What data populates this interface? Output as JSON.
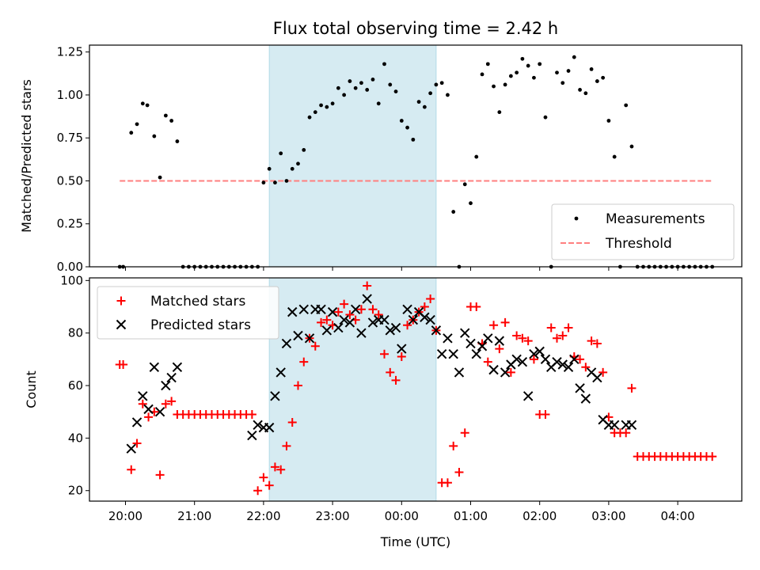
{
  "chart_data": [
    {
      "type": "scatter",
      "title": "Flux total observing time = 2.42 h",
      "xlabel": "",
      "ylabel": "Matched/Predicted stars",
      "ylim": [
        0,
        1.29
      ],
      "yticks": [
        "0.00",
        "0.25",
        "0.50",
        "0.75",
        "1.00",
        "1.25"
      ],
      "x_unit": "hours after 20:00 UTC",
      "shaded_interval": [
        "22:05",
        "00:30"
      ],
      "shade_color": "#add8e6",
      "legend": "lower right",
      "series": [
        {
          "name": "Measurements",
          "color": "#000000",
          "marker": "dot",
          "x": [
            "19:55",
            "19:58",
            "20:05",
            "20:10",
            "20:15",
            "20:19",
            "20:25",
            "20:30",
            "20:35",
            "20:40",
            "20:45",
            "20:50",
            "20:55",
            "21:00",
            "21:05",
            "21:10",
            "21:15",
            "21:20",
            "21:25",
            "21:30",
            "21:35",
            "21:40",
            "21:45",
            "21:50",
            "21:55",
            "22:00",
            "22:05",
            "22:10",
            "22:15",
            "22:20",
            "22:25",
            "22:30",
            "22:35",
            "22:40",
            "22:45",
            "22:50",
            "22:55",
            "23:00",
            "23:05",
            "23:10",
            "23:15",
            "23:20",
            "23:25",
            "23:30",
            "23:35",
            "23:40",
            "23:45",
            "23:50",
            "23:55",
            "00:00",
            "00:05",
            "00:10",
            "00:15",
            "00:20",
            "00:25",
            "00:30",
            "00:35",
            "00:40",
            "00:45",
            "00:50",
            "00:55",
            "01:00",
            "01:05",
            "01:10",
            "01:15",
            "01:20",
            "01:25",
            "01:30",
            "01:35",
            "01:40",
            "01:45",
            "01:50",
            "01:55",
            "02:00",
            "02:05",
            "02:10",
            "02:15",
            "02:20",
            "02:25",
            "02:30",
            "02:35",
            "02:40",
            "02:45",
            "02:50",
            "02:55",
            "03:00",
            "03:05",
            "03:10",
            "03:15",
            "03:20",
            "03:25",
            "03:30",
            "03:35",
            "03:40",
            "03:45",
            "03:50",
            "03:55",
            "04:00",
            "04:05",
            "04:10",
            "04:15",
            "04:20",
            "04:25",
            "04:30"
          ],
          "y": [
            0.0,
            0.0,
            0.78,
            0.83,
            0.95,
            0.94,
            0.76,
            0.52,
            0.88,
            0.85,
            0.73,
            0.0,
            0.0,
            0.0,
            0.0,
            0.0,
            0.0,
            0.0,
            0.0,
            0.0,
            0.0,
            0.0,
            0.0,
            0.0,
            0.0,
            0.49,
            0.57,
            0.49,
            0.66,
            0.5,
            0.57,
            0.6,
            0.68,
            0.87,
            0.9,
            0.94,
            0.93,
            0.95,
            1.04,
            1.0,
            1.08,
            1.04,
            1.07,
            1.03,
            1.09,
            0.95,
            1.18,
            1.06,
            1.02,
            0.85,
            0.81,
            0.74,
            0.96,
            0.93,
            1.01,
            1.06,
            1.07,
            1.0,
            0.32,
            0.0,
            0.48,
            0.37,
            0.64,
            1.12,
            1.18,
            1.05,
            0.9,
            1.06,
            1.11,
            1.13,
            1.21,
            1.17,
            1.1,
            1.18,
            0.87,
            0.0,
            1.13,
            1.07,
            1.14,
            1.22,
            1.03,
            1.01,
            1.15,
            1.08,
            1.1,
            0.85,
            0.64,
            0.0,
            0.94,
            0.7,
            0.0,
            0.0,
            0.0,
            0.0,
            0.0,
            0.0,
            0.0,
            0.0,
            0.0,
            0.0,
            0.0,
            0.0,
            0.0,
            0.0
          ]
        },
        {
          "name": "Threshold",
          "color": "#ff7f7f",
          "style": "dashed",
          "x": [
            "19:55",
            "04:30"
          ],
          "y": [
            0.5,
            0.5
          ]
        }
      ]
    },
    {
      "type": "scatter",
      "title": "",
      "xlabel": "Time (UTC)",
      "ylabel": "Count",
      "ylim": [
        16,
        101
      ],
      "yticks": [
        "20",
        "40",
        "60",
        "80",
        "100"
      ],
      "xticks": [
        "20:00",
        "21:00",
        "22:00",
        "23:00",
        "00:00",
        "01:00",
        "02:00",
        "03:00",
        "04:00"
      ],
      "x_unit": "hours after 20:00 UTC",
      "shaded_interval": [
        "22:05",
        "00:30"
      ],
      "shade_color": "#add8e6",
      "legend": "upper left",
      "series": [
        {
          "name": "Matched stars",
          "color": "#ff0000",
          "marker": "plus",
          "x": [
            "19:55",
            "19:58",
            "20:05",
            "20:10",
            "20:15",
            "20:20",
            "20:25",
            "20:30",
            "20:35",
            "20:40",
            "20:45",
            "20:50",
            "20:55",
            "21:00",
            "21:05",
            "21:10",
            "21:15",
            "21:20",
            "21:25",
            "21:30",
            "21:35",
            "21:40",
            "21:45",
            "21:50",
            "21:55",
            "22:00",
            "22:05",
            "22:10",
            "22:15",
            "22:20",
            "22:25",
            "22:30",
            "22:35",
            "22:40",
            "22:45",
            "22:50",
            "22:55",
            "23:00",
            "23:05",
            "23:10",
            "23:15",
            "23:20",
            "23:25",
            "23:30",
            "23:35",
            "23:40",
            "23:45",
            "23:50",
            "23:55",
            "00:00",
            "00:05",
            "00:10",
            "00:15",
            "00:20",
            "00:25",
            "00:30",
            "00:35",
            "00:40",
            "00:45",
            "00:50",
            "00:55",
            "01:00",
            "01:05",
            "01:10",
            "01:15",
            "01:20",
            "01:25",
            "01:30",
            "01:35",
            "01:40",
            "01:45",
            "01:50",
            "01:55",
            "02:00",
            "02:05",
            "02:10",
            "02:15",
            "02:20",
            "02:25",
            "02:30",
            "02:35",
            "02:40",
            "02:45",
            "02:50",
            "02:55",
            "03:00",
            "03:05",
            "03:10",
            "03:15",
            "03:20",
            "03:25",
            "03:30",
            "03:35",
            "03:40",
            "03:45",
            "03:50",
            "03:55",
            "04:00",
            "04:05",
            "04:10",
            "04:15",
            "04:20",
            "04:25",
            "04:30"
          ],
          "y": [
            68,
            68,
            28,
            38,
            53,
            48,
            50,
            26,
            53,
            54,
            49,
            49,
            49,
            49,
            49,
            49,
            49,
            49,
            49,
            49,
            49,
            49,
            49,
            49,
            20,
            25,
            22,
            29,
            28,
            37,
            46,
            60,
            69,
            78,
            75,
            84,
            85,
            83,
            88,
            91,
            87,
            85,
            89,
            98,
            89,
            87,
            72,
            65,
            62,
            71,
            83,
            85,
            88,
            90,
            93,
            81,
            23,
            23,
            37,
            27,
            42,
            90,
            90,
            76,
            69,
            83,
            74,
            84,
            65,
            79,
            78,
            77,
            70,
            49,
            49,
            82,
            78,
            79,
            82,
            71,
            70,
            67,
            77,
            76,
            65,
            48,
            42,
            42,
            42,
            59,
            33,
            33,
            33,
            33,
            33,
            33,
            33,
            33,
            33,
            33,
            33,
            33,
            33,
            33
          ]
        },
        {
          "name": "Predicted stars",
          "color": "#000000",
          "marker": "x",
          "x": [
            "20:05",
            "20:10",
            "20:15",
            "20:20",
            "20:25",
            "20:30",
            "20:35",
            "20:40",
            "20:45",
            "21:50",
            "21:55",
            "22:00",
            "22:05",
            "22:10",
            "22:15",
            "22:20",
            "22:25",
            "22:30",
            "22:35",
            "22:40",
            "22:45",
            "22:50",
            "22:55",
            "23:00",
            "23:05",
            "23:10",
            "23:15",
            "23:20",
            "23:25",
            "23:30",
            "23:35",
            "23:40",
            "23:45",
            "23:50",
            "23:55",
            "00:00",
            "00:05",
            "00:10",
            "00:15",
            "00:20",
            "00:25",
            "00:30",
            "00:35",
            "00:40",
            "00:45",
            "00:50",
            "00:55",
            "01:00",
            "01:05",
            "01:10",
            "01:15",
            "01:20",
            "01:25",
            "01:30",
            "01:35",
            "01:40",
            "01:45",
            "01:50",
            "01:55",
            "02:00",
            "02:05",
            "02:10",
            "02:15",
            "02:20",
            "02:25",
            "02:30",
            "02:35",
            "02:40",
            "02:45",
            "02:50",
            "02:55",
            "03:00",
            "03:05",
            "03:15",
            "03:20"
          ],
          "y": [
            36,
            46,
            56,
            51,
            67,
            50,
            60,
            63,
            67,
            41,
            45,
            44,
            44,
            56,
            65,
            76,
            88,
            79,
            89,
            78,
            89,
            89,
            81,
            88,
            82,
            85,
            84,
            89,
            80,
            93,
            84,
            85,
            85,
            81,
            82,
            74,
            89,
            85,
            88,
            86,
            85,
            81,
            72,
            78,
            72,
            65,
            80,
            76,
            72,
            75,
            78,
            66,
            77,
            65,
            68,
            70,
            69,
            56,
            72,
            73,
            70,
            67,
            69,
            68,
            67,
            70,
            59,
            55,
            65,
            63,
            47,
            45,
            45,
            45,
            45
          ]
        }
      ]
    }
  ]
}
